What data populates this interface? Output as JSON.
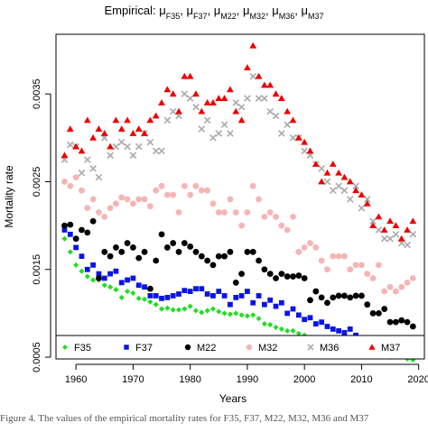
{
  "chart_data": {
    "type": "scatter",
    "title": "Empirical: μF35, μF37, μM22, μM32, μM36, μM37",
    "xlabel": "Years",
    "ylabel": "Mortality rate",
    "xlim": [
      1956.5,
      2021
    ],
    "ylim": [
      0.00048,
      0.00418
    ],
    "x_ticks": [
      1960,
      1970,
      1980,
      1990,
      2000,
      2010,
      2020
    ],
    "y_ticks": [
      0.0005,
      0.0015,
      0.0025,
      0.0035
    ],
    "y_tick_labels": [
      "0.0005",
      "0.0015",
      "0.0025",
      "0.0035"
    ],
    "grid": false,
    "legend_position": "bottom-left",
    "x": [
      1958,
      1959,
      1960,
      1961,
      1962,
      1963,
      1964,
      1965,
      1966,
      1967,
      1968,
      1969,
      1970,
      1971,
      1972,
      1973,
      1974,
      1975,
      1976,
      1977,
      1978,
      1979,
      1980,
      1981,
      1982,
      1983,
      1984,
      1985,
      1986,
      1987,
      1988,
      1989,
      1990,
      1991,
      1992,
      1993,
      1994,
      1995,
      1996,
      1997,
      1998,
      1999,
      2000,
      2001,
      2002,
      2003,
      2004,
      2005,
      2006,
      2007,
      2008,
      2009,
      2010,
      2011,
      2012,
      2013,
      2014,
      2015,
      2016,
      2017,
      2018,
      2019
    ],
    "series": [
      {
        "name": "F35",
        "color": "#22dd22",
        "marker": "diamond",
        "values": [
          0.00185,
          0.0017,
          0.00155,
          0.00148,
          0.00142,
          0.00138,
          0.00138,
          0.00132,
          0.0013,
          0.00127,
          0.00118,
          0.00125,
          0.00123,
          0.00117,
          0.00116,
          0.00113,
          0.0011,
          0.00105,
          0.00106,
          0.00104,
          0.00104,
          0.00105,
          0.00108,
          0.00103,
          0.00101,
          0.00103,
          0.00105,
          0.00102,
          0.001,
          0.00099,
          0.001,
          0.00098,
          0.00097,
          0.00098,
          0.00094,
          0.00088,
          0.00087,
          0.00084,
          0.00082,
          0.0008,
          0.0008,
          0.00077,
          0.00075,
          0.00072,
          0.00068,
          0.0007,
          0.00066,
          0.00067,
          0.00064,
          0.00063,
          0.00062,
          0.00062,
          0.00062,
          0.00061,
          0.00055,
          0.00058,
          0.00053,
          0.0005,
          0.00051,
          0.00053,
          0.00048,
          0.00047
        ]
      },
      {
        "name": "F37",
        "color": "#0a14e6",
        "marker": "square",
        "values": [
          0.00195,
          0.0019,
          0.00175,
          0.00165,
          0.0015,
          0.00155,
          0.00145,
          0.0014,
          0.00145,
          0.00148,
          0.00135,
          0.00138,
          0.0014,
          0.00132,
          0.0013,
          0.0012,
          0.0012,
          0.00117,
          0.00118,
          0.0012,
          0.00122,
          0.00126,
          0.00125,
          0.00128,
          0.00128,
          0.00122,
          0.0012,
          0.00125,
          0.0012,
          0.0011,
          0.00118,
          0.0012,
          0.00125,
          0.00112,
          0.0012,
          0.0011,
          0.00115,
          0.00108,
          0.00112,
          0.001,
          0.00105,
          0.00098,
          0.00093,
          0.00095,
          0.00088,
          0.0009,
          0.00085,
          0.00082,
          0.0008,
          0.00078,
          0.00082,
          0.00075,
          0.0007,
          0.00068,
          0.00065,
          0.00066,
          0.00063,
          0.00065,
          0.0006,
          0.00059,
          0.0006,
          0.00059
        ]
      },
      {
        "name": "M22",
        "color": "#000000",
        "marker": "circle",
        "values": [
          0.002,
          0.00201,
          0.00185,
          0.00195,
          0.00192,
          0.00205,
          0.0014,
          0.0017,
          0.00165,
          0.00175,
          0.0017,
          0.0018,
          0.00175,
          0.00163,
          0.0017,
          0.00128,
          0.0016,
          0.0019,
          0.00175,
          0.0018,
          0.0017,
          0.0018,
          0.00176,
          0.0017,
          0.00165,
          0.0016,
          0.00155,
          0.00165,
          0.00165,
          0.0017,
          0.00135,
          0.00145,
          0.0017,
          0.0017,
          0.0016,
          0.0015,
          0.00145,
          0.0014,
          0.00145,
          0.00142,
          0.00142,
          0.00143,
          0.0014,
          0.00115,
          0.00125,
          0.00118,
          0.00112,
          0.00118,
          0.0012,
          0.0012,
          0.00118,
          0.0012,
          0.0012,
          0.0011,
          0.001,
          0.001,
          0.00105,
          0.0009,
          0.0009,
          0.00092,
          0.0009,
          0.00085
        ]
      },
      {
        "name": "M32",
        "color": "#f5b5b5",
        "marker": "circle",
        "values": [
          0.0025,
          0.00245,
          0.00255,
          0.0024,
          0.0022,
          0.0023,
          0.00215,
          0.0021,
          0.0022,
          0.00225,
          0.00232,
          0.0023,
          0.00225,
          0.0023,
          0.0023,
          0.00222,
          0.0024,
          0.00245,
          0.00235,
          0.00235,
          0.00215,
          0.00245,
          0.00235,
          0.00245,
          0.0024,
          0.0024,
          0.00225,
          0.00215,
          0.00215,
          0.0023,
          0.00215,
          0.002,
          0.00215,
          0.00245,
          0.0023,
          0.0021,
          0.00215,
          0.0021,
          0.002,
          0.00195,
          0.0021,
          0.0017,
          0.00175,
          0.0018,
          0.00175,
          0.0016,
          0.0015,
          0.00165,
          0.00165,
          0.00165,
          0.0015,
          0.00155,
          0.00155,
          0.00145,
          0.0014,
          0.00155,
          0.00125,
          0.0013,
          0.00125,
          0.0013,
          0.00135,
          0.0014
        ]
      },
      {
        "name": "M36",
        "color": "#aaaaaa",
        "marker": "cross",
        "values": [
          0.00275,
          0.00292,
          0.0029,
          0.0026,
          0.00275,
          0.00265,
          0.00255,
          0.003,
          0.0028,
          0.0029,
          0.00295,
          0.0029,
          0.0028,
          0.0029,
          0.00305,
          0.00295,
          0.00285,
          0.00285,
          0.0032,
          0.0033,
          0.00325,
          0.0035,
          0.00345,
          0.00335,
          0.0031,
          0.0032,
          0.003,
          0.00305,
          0.00315,
          0.00305,
          0.0034,
          0.00335,
          0.00345,
          0.0037,
          0.00345,
          0.00345,
          0.0033,
          0.00325,
          0.00305,
          0.00315,
          0.003,
          0.003,
          0.00285,
          0.0028,
          0.0027,
          0.00265,
          0.0025,
          0.0024,
          0.00245,
          0.0024,
          0.0023,
          0.00245,
          0.0022,
          0.0023,
          0.00205,
          0.00195,
          0.00185,
          0.00185,
          0.0019,
          0.0018,
          0.00178,
          0.0019
        ]
      },
      {
        "name": "M37",
        "color": "#ee0000",
        "marker": "triangle",
        "values": [
          0.0028,
          0.0031,
          0.0029,
          0.00285,
          0.0032,
          0.003,
          0.0031,
          0.00305,
          0.0029,
          0.0032,
          0.0031,
          0.0032,
          0.00305,
          0.0031,
          0.00305,
          0.0032,
          0.00325,
          0.0034,
          0.00355,
          0.0035,
          0.0033,
          0.0037,
          0.0037,
          0.0035,
          0.0033,
          0.0034,
          0.0034,
          0.00345,
          0.00345,
          0.00355,
          0.0033,
          0.0032,
          0.0038,
          0.00405,
          0.0037,
          0.0036,
          0.0036,
          0.0035,
          0.00345,
          0.0033,
          0.0032,
          0.003,
          0.00295,
          0.00285,
          0.0027,
          0.0025,
          0.0026,
          0.0027,
          0.0026,
          0.00255,
          0.0025,
          0.0024,
          0.00235,
          0.00225,
          0.002,
          0.0021,
          0.00195,
          0.00205,
          0.002,
          0.00185,
          0.00195,
          0.00205
        ]
      }
    ]
  },
  "caption": {
    "text": "Figure 4. The values of the empirical mortality rates for F35, F37, M22, M32, M36 and M37"
  }
}
